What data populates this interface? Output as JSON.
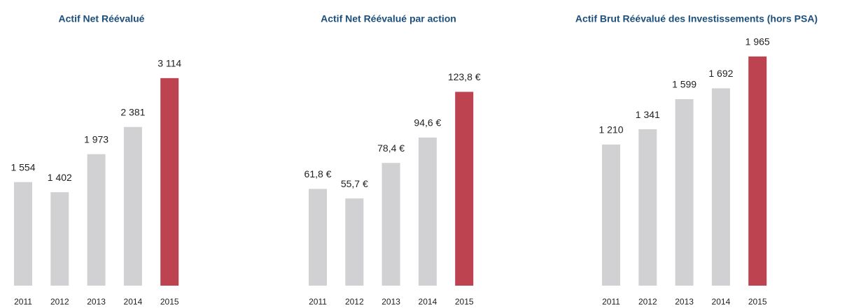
{
  "chart_data": [
    {
      "type": "bar",
      "title": "Actif Net Réévalué",
      "categories": [
        "2011",
        "2012",
        "2013",
        "2014",
        "2015"
      ],
      "values": [
        1554,
        1402,
        1973,
        2381,
        3114
      ],
      "value_labels": [
        "1 554",
        "1 402",
        "1 973",
        "2 381",
        "3 114"
      ],
      "colors": [
        "#d1d1d3",
        "#d1d1d3",
        "#d1d1d3",
        "#d1d1d3",
        "#be4351"
      ],
      "ylim": [
        0,
        3500
      ]
    },
    {
      "type": "bar",
      "title": "Actif Net Réévalué par action",
      "categories": [
        "2011",
        "2012",
        "2013",
        "2014",
        "2015"
      ],
      "values": [
        61.8,
        55.7,
        78.4,
        94.6,
        123.8
      ],
      "value_labels": [
        "61,8 €",
        "55,7 €",
        "78,4 €",
        "94,6 €",
        "123,8 €"
      ],
      "colors": [
        "#d1d1d3",
        "#d1d1d3",
        "#d1d1d3",
        "#d1d1d3",
        "#be4351"
      ],
      "ylim": [
        0,
        149
      ]
    },
    {
      "type": "bar",
      "title": "Actif Brut Réévalué des Investissements (hors PSA)",
      "categories": [
        "2011",
        "2012",
        "2013",
        "2014",
        "2015"
      ],
      "values": [
        1210,
        1341,
        1599,
        1692,
        1965
      ],
      "value_labels": [
        "1 210",
        "1 341",
        "1 599",
        "1 692",
        "1 965"
      ],
      "colors": [
        "#d1d1d3",
        "#d1d1d3",
        "#d1d1d3",
        "#d1d1d3",
        "#be4351"
      ],
      "ylim": [
        0,
        2000
      ]
    }
  ]
}
